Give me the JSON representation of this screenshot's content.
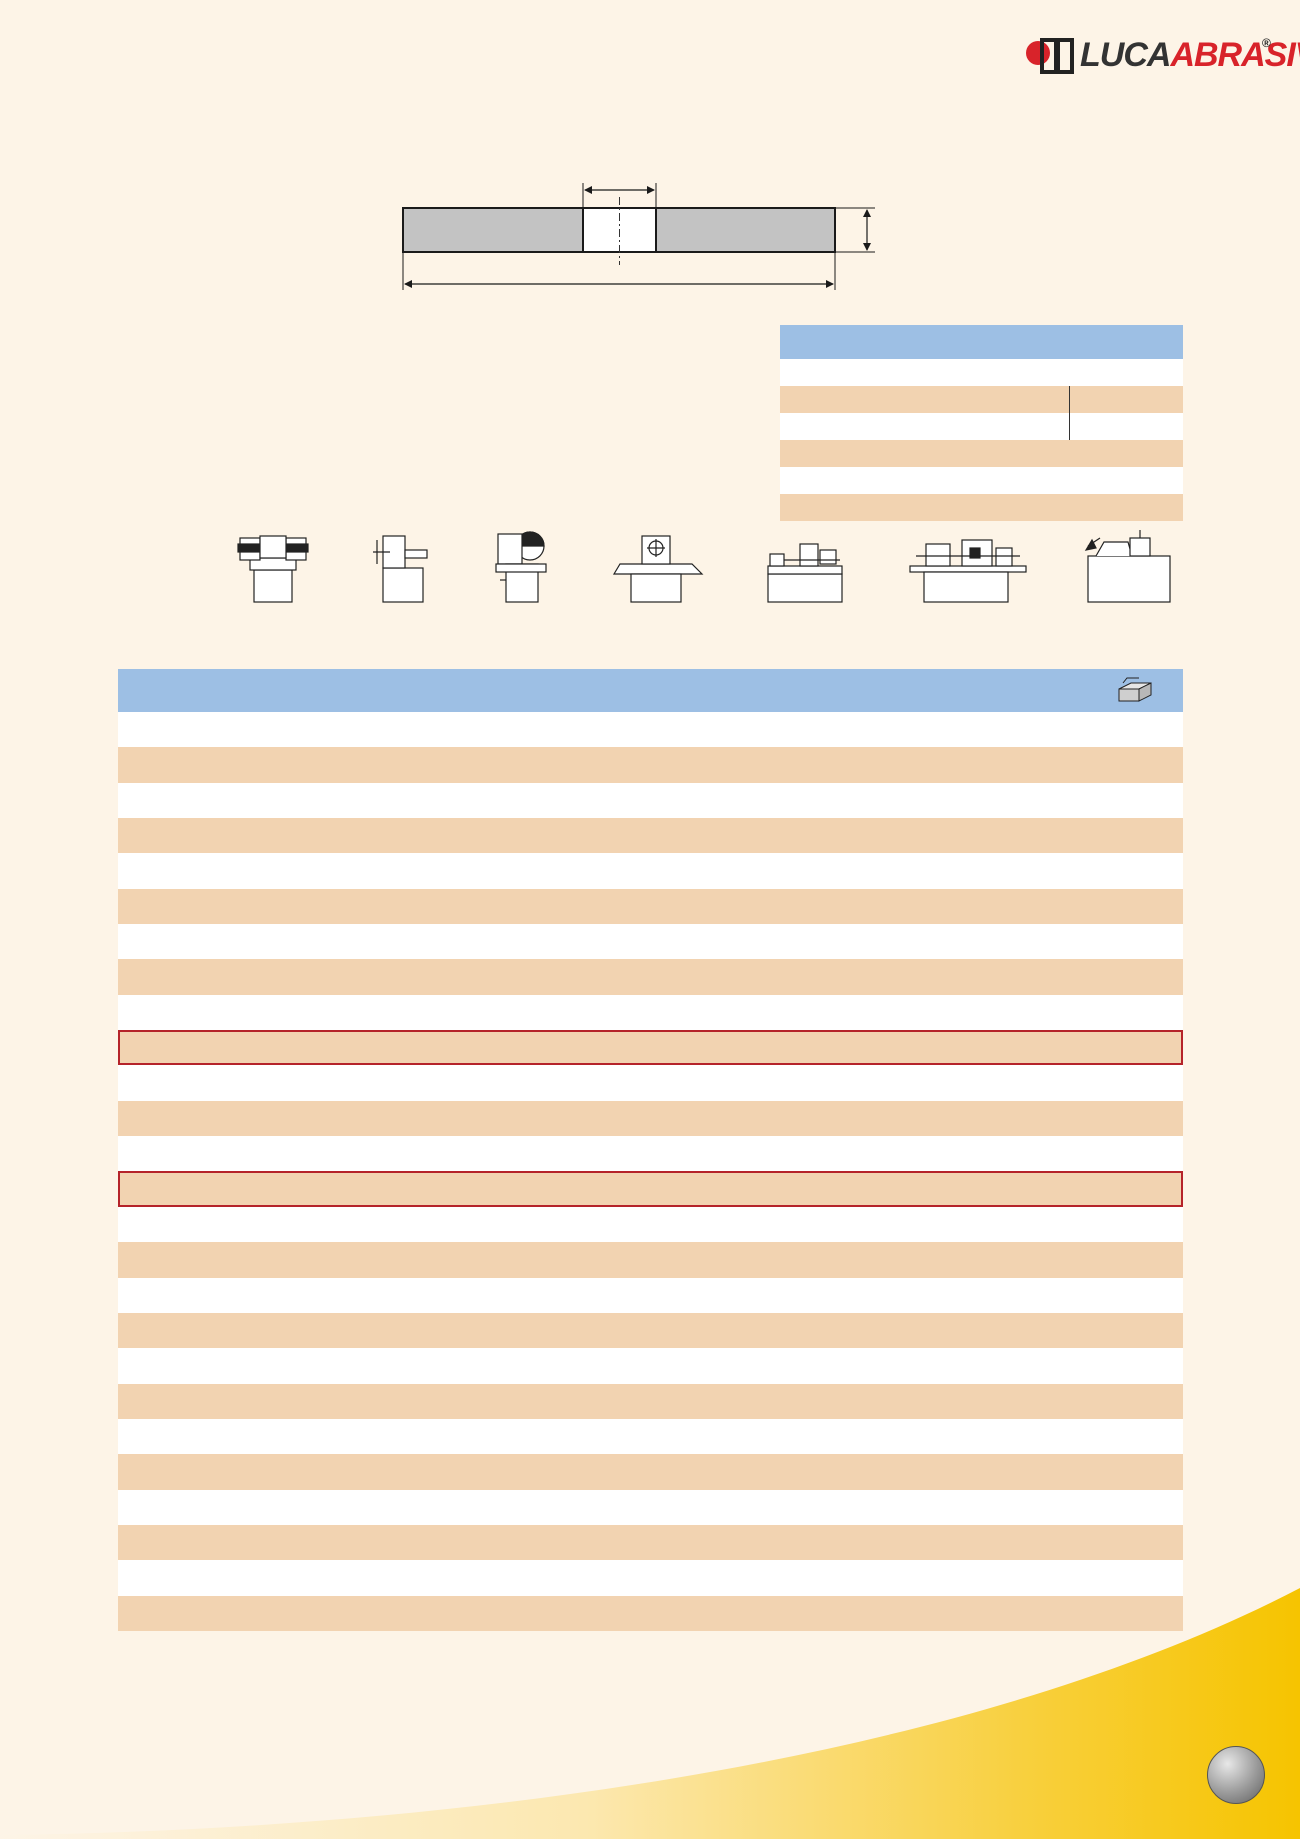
{
  "logo": {
    "word_luca": "LUCA",
    "word_abrasiv": "ABRASIV",
    "registered": "®"
  },
  "page": {
    "number": ""
  },
  "colors": {
    "background": "#fdf4e7",
    "header_blue": "#9dbfe4",
    "row_orange": "#f2d3b1",
    "row_white": "#ffffff",
    "highlight_border": "#b5232a",
    "swoosh_yellow": "#f6c400"
  },
  "info_table": {
    "rows": [
      "white",
      "orange",
      "white",
      "orange",
      "white",
      "orange"
    ]
  },
  "machines": [
    "bench-grinder-icon",
    "pedestal-grinder-icon",
    "cut-off-machine-icon",
    "surface-grinder-icon",
    "cylindrical-grinder-icon",
    "centerless-grinder-icon",
    "tool-grinder-icon"
  ],
  "main_table": {
    "header_icon": "box-icon",
    "rows": [
      {
        "tone": "w",
        "highlight": false
      },
      {
        "tone": "o",
        "highlight": false
      },
      {
        "tone": "w",
        "highlight": false
      },
      {
        "tone": "o",
        "highlight": false
      },
      {
        "tone": "w",
        "highlight": false
      },
      {
        "tone": "o",
        "highlight": false
      },
      {
        "tone": "w",
        "highlight": false
      },
      {
        "tone": "o",
        "highlight": false
      },
      {
        "tone": "w",
        "highlight": false
      },
      {
        "tone": "o",
        "highlight": true
      },
      {
        "tone": "w",
        "highlight": false
      },
      {
        "tone": "o",
        "highlight": false
      },
      {
        "tone": "w",
        "highlight": false
      },
      {
        "tone": "o",
        "highlight": true
      },
      {
        "tone": "w",
        "highlight": false
      },
      {
        "tone": "o",
        "highlight": false
      },
      {
        "tone": "w",
        "highlight": false
      },
      {
        "tone": "o",
        "highlight": false
      },
      {
        "tone": "w",
        "highlight": false
      },
      {
        "tone": "o",
        "highlight": false
      },
      {
        "tone": "w",
        "highlight": false
      },
      {
        "tone": "o",
        "highlight": false
      },
      {
        "tone": "w",
        "highlight": false
      },
      {
        "tone": "o",
        "highlight": false
      },
      {
        "tone": "w",
        "highlight": false
      },
      {
        "tone": "o",
        "highlight": false
      }
    ]
  }
}
